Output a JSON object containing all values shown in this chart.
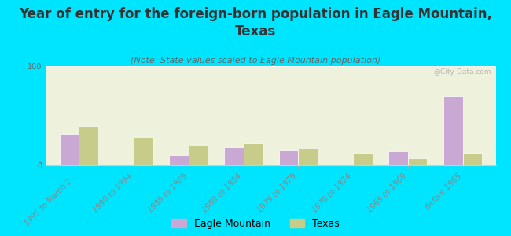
{
  "title": "Year of entry for the foreign-born population in Eagle Mountain,\nTexas",
  "subtitle": "(Note: State values scaled to Eagle Mountain population)",
  "categories": [
    "1995 to March 2...",
    "1990 to 1994",
    "1985 to 1989",
    "1980 to 1984",
    "1975 to 1979",
    "1970 to 1974",
    "1965 to 1969",
    "Before 1965"
  ],
  "eagle_mountain": [
    32,
    0,
    10,
    18,
    15,
    0,
    14,
    70
  ],
  "texas": [
    40,
    28,
    20,
    22,
    17,
    12,
    7,
    12
  ],
  "eagle_mountain_color": "#c9a8d4",
  "texas_color": "#c8cc8a",
  "background_color": "#00e5ff",
  "ylim": [
    0,
    100
  ],
  "yticks": [
    0,
    100
  ],
  "bar_width": 0.35,
  "watermark": "@City-Data.com",
  "legend_eagle": "Eagle Mountain",
  "legend_texas": "Texas",
  "title_fontsize": 12,
  "subtitle_fontsize": 8,
  "tick_fontsize": 7,
  "legend_fontsize": 9
}
